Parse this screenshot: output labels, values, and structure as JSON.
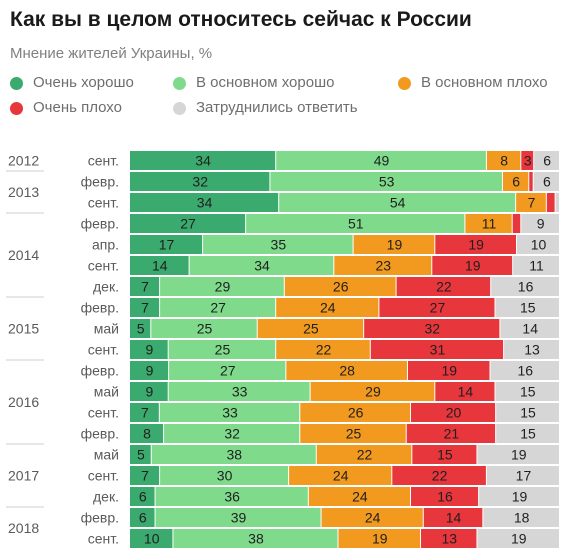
{
  "chart_data": {
    "type": "bar",
    "orientation": "horizontal",
    "stacked": true,
    "title": "Как вы в целом относитесь сейчас к России",
    "subtitle": "Мнение жителей Украины, %",
    "legend_placement": "top",
    "grid": false,
    "xlim": [
      0,
      100
    ],
    "series": [
      {
        "name": "Очень хорошо",
        "color": "#3aaa6e",
        "values": [
          34,
          32,
          34,
          27,
          17,
          14,
          7,
          7,
          5,
          9,
          9,
          9,
          7,
          8,
          5,
          7,
          6,
          6,
          10
        ]
      },
      {
        "name": "В основном хорошо",
        "color": "#7fdb8b",
        "values": [
          49,
          53,
          54,
          51,
          35,
          34,
          29,
          27,
          25,
          25,
          27,
          33,
          33,
          32,
          38,
          30,
          36,
          39,
          38
        ]
      },
      {
        "name": "В основном плохо",
        "color": "#f29a1f",
        "values": [
          8,
          6,
          7,
          11,
          19,
          23,
          26,
          24,
          25,
          22,
          28,
          29,
          26,
          25,
          22,
          24,
          24,
          24,
          19
        ]
      },
      {
        "name": "Очень плохо",
        "color": "#e8363d",
        "values": [
          3,
          1,
          2,
          2,
          19,
          19,
          22,
          27,
          32,
          31,
          19,
          14,
          20,
          21,
          15,
          22,
          16,
          14,
          13
        ]
      },
      {
        "name": "Затруднились ответить",
        "color": "#d6d6d6",
        "values": [
          6,
          6,
          1,
          9,
          10,
          11,
          16,
          15,
          14,
          13,
          16,
          15,
          15,
          15,
          19,
          17,
          19,
          18,
          19
        ]
      }
    ],
    "value_labels": [
      [
        "34",
        "49",
        "8",
        "3",
        "6"
      ],
      [
        "32",
        "53",
        "6",
        "",
        "6"
      ],
      [
        "34",
        "54",
        "7",
        "",
        ""
      ],
      [
        "27",
        "51",
        "11",
        "",
        "9"
      ],
      [
        "17",
        "35",
        "19",
        "19",
        "10"
      ],
      [
        "14",
        "34",
        "23",
        "19",
        "11"
      ],
      [
        "7",
        "29",
        "26",
        "22",
        "16"
      ],
      [
        "7",
        "27",
        "24",
        "27",
        "15"
      ],
      [
        "5",
        "25",
        "25",
        "32",
        "14"
      ],
      [
        "9",
        "25",
        "22",
        "31",
        "13"
      ],
      [
        "9",
        "27",
        "28",
        "19",
        "16"
      ],
      [
        "9",
        "33",
        "29",
        "14",
        "15"
      ],
      [
        "7",
        "33",
        "26",
        "20",
        "15"
      ],
      [
        "8",
        "32",
        "25",
        "21",
        "15"
      ],
      [
        "5",
        "38",
        "22",
        "15",
        "19"
      ],
      [
        "7",
        "30",
        "24",
        "22",
        "17"
      ],
      [
        "6",
        "36",
        "24",
        "16",
        "19"
      ],
      [
        "6",
        "39",
        "24",
        "14",
        "18"
      ],
      [
        "10",
        "38",
        "19",
        "13",
        "19"
      ]
    ],
    "categories": [
      "сент.",
      "февр.",
      "сент.",
      "февр.",
      "апр.",
      "сент.",
      "дек.",
      "февр.",
      "май",
      "сент.",
      "февр.",
      "май",
      "сент.",
      "февр.",
      "май",
      "сент.",
      "дек.",
      "февр.",
      "сент."
    ],
    "years": [
      {
        "label": "2012",
        "first": 0,
        "last": 0
      },
      {
        "label": "2013",
        "first": 1,
        "last": 2
      },
      {
        "label": "2014",
        "first": 3,
        "last": 6
      },
      {
        "label": "2015",
        "first": 7,
        "last": 9
      },
      {
        "label": "2016",
        "first": 10,
        "last": 13
      },
      {
        "label": "2017",
        "first": 14,
        "last": 16
      },
      {
        "label": "2018",
        "first": 17,
        "last": 18
      }
    ]
  }
}
